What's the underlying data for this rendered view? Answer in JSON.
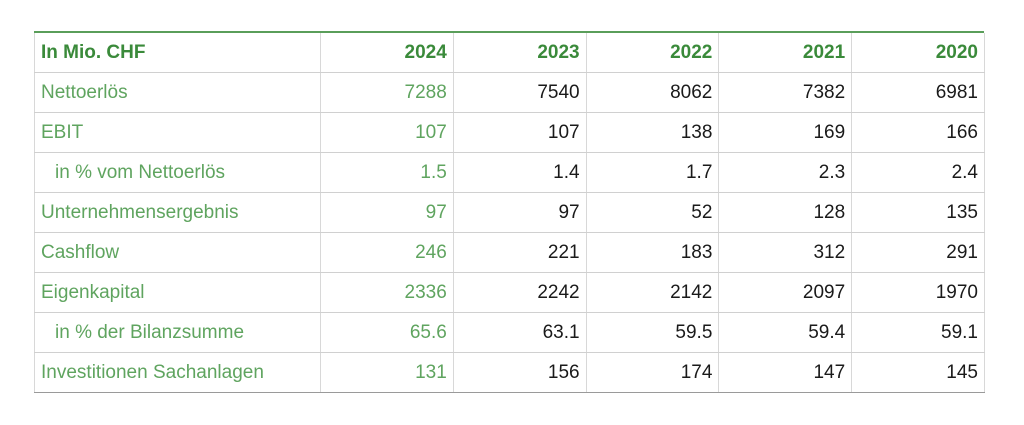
{
  "header": {
    "label": "In Mio. CHF",
    "years": [
      "2024",
      "2023",
      "2022",
      "2021",
      "2020"
    ]
  },
  "rows": [
    {
      "label": "Nettoerlös",
      "indent": false,
      "values": [
        "7288",
        "7540",
        "8062",
        "7382",
        "6981"
      ]
    },
    {
      "label": "EBIT",
      "indent": false,
      "values": [
        "107",
        "107",
        "138",
        "169",
        "166"
      ]
    },
    {
      "label": "in % vom Nettoerlös",
      "indent": true,
      "values": [
        "1.5",
        "1.4",
        "1.7",
        "2.3",
        "2.4"
      ]
    },
    {
      "label": "Unternehmensergebnis",
      "indent": false,
      "values": [
        "97",
        "97",
        "52",
        "128",
        "135"
      ]
    },
    {
      "label": "Cashflow",
      "indent": false,
      "values": [
        "246",
        "221",
        "183",
        "312",
        "291"
      ]
    },
    {
      "label": "Eigenkapital",
      "indent": false,
      "values": [
        "2336",
        "2242",
        "2142",
        "2097",
        "1970"
      ]
    },
    {
      "label": "in % der Bilanzsumme",
      "indent": true,
      "values": [
        "65.6",
        "63.1",
        "59.5",
        "59.4",
        "59.1"
      ]
    },
    {
      "label": "Investitionen Sachanlagen",
      "indent": false,
      "values": [
        "131",
        "156",
        "174",
        "147",
        "145"
      ]
    }
  ],
  "colors": {
    "accent_green": "#3a8a3a",
    "label_green": "#5fa45f",
    "value_text": "#1a1a1a",
    "grid_line": "#d0d0d0"
  }
}
